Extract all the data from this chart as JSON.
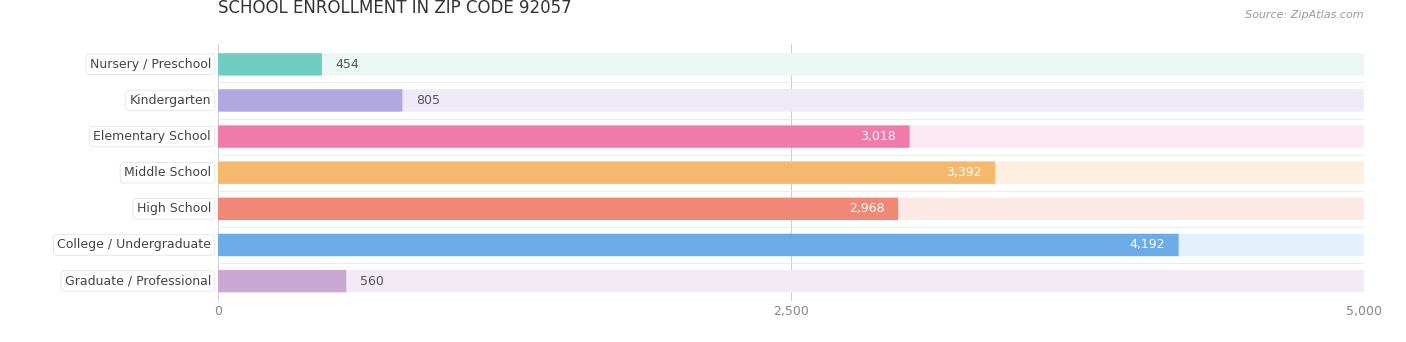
{
  "title": "SCHOOL ENROLLMENT IN ZIP CODE 92057",
  "source": "Source: ZipAtlas.com",
  "categories": [
    "Nursery / Preschool",
    "Kindergarten",
    "Elementary School",
    "Middle School",
    "High School",
    "College / Undergraduate",
    "Graduate / Professional"
  ],
  "values": [
    454,
    805,
    3018,
    3392,
    2968,
    4192,
    560
  ],
  "bar_colors": [
    "#6ecfc0",
    "#b0a8df",
    "#f07aaa",
    "#f5b96e",
    "#f08878",
    "#6aabe8",
    "#c9a8d4"
  ],
  "bar_bg_colors": [
    "#eaf7f5",
    "#eeeaf8",
    "#fce8f2",
    "#fdf0e0",
    "#fce8e4",
    "#e4f0fc",
    "#f2eaf5"
  ],
  "xlim": [
    0,
    5000
  ],
  "xticks": [
    0,
    2500,
    5000
  ],
  "xtick_labels": [
    "0",
    "2,500",
    "5,000"
  ],
  "title_fontsize": 12,
  "label_fontsize": 9,
  "value_fontsize": 9,
  "bg_color": "#ffffff",
  "plot_bg_color": "#ffffff",
  "value_inside_threshold": 1800
}
